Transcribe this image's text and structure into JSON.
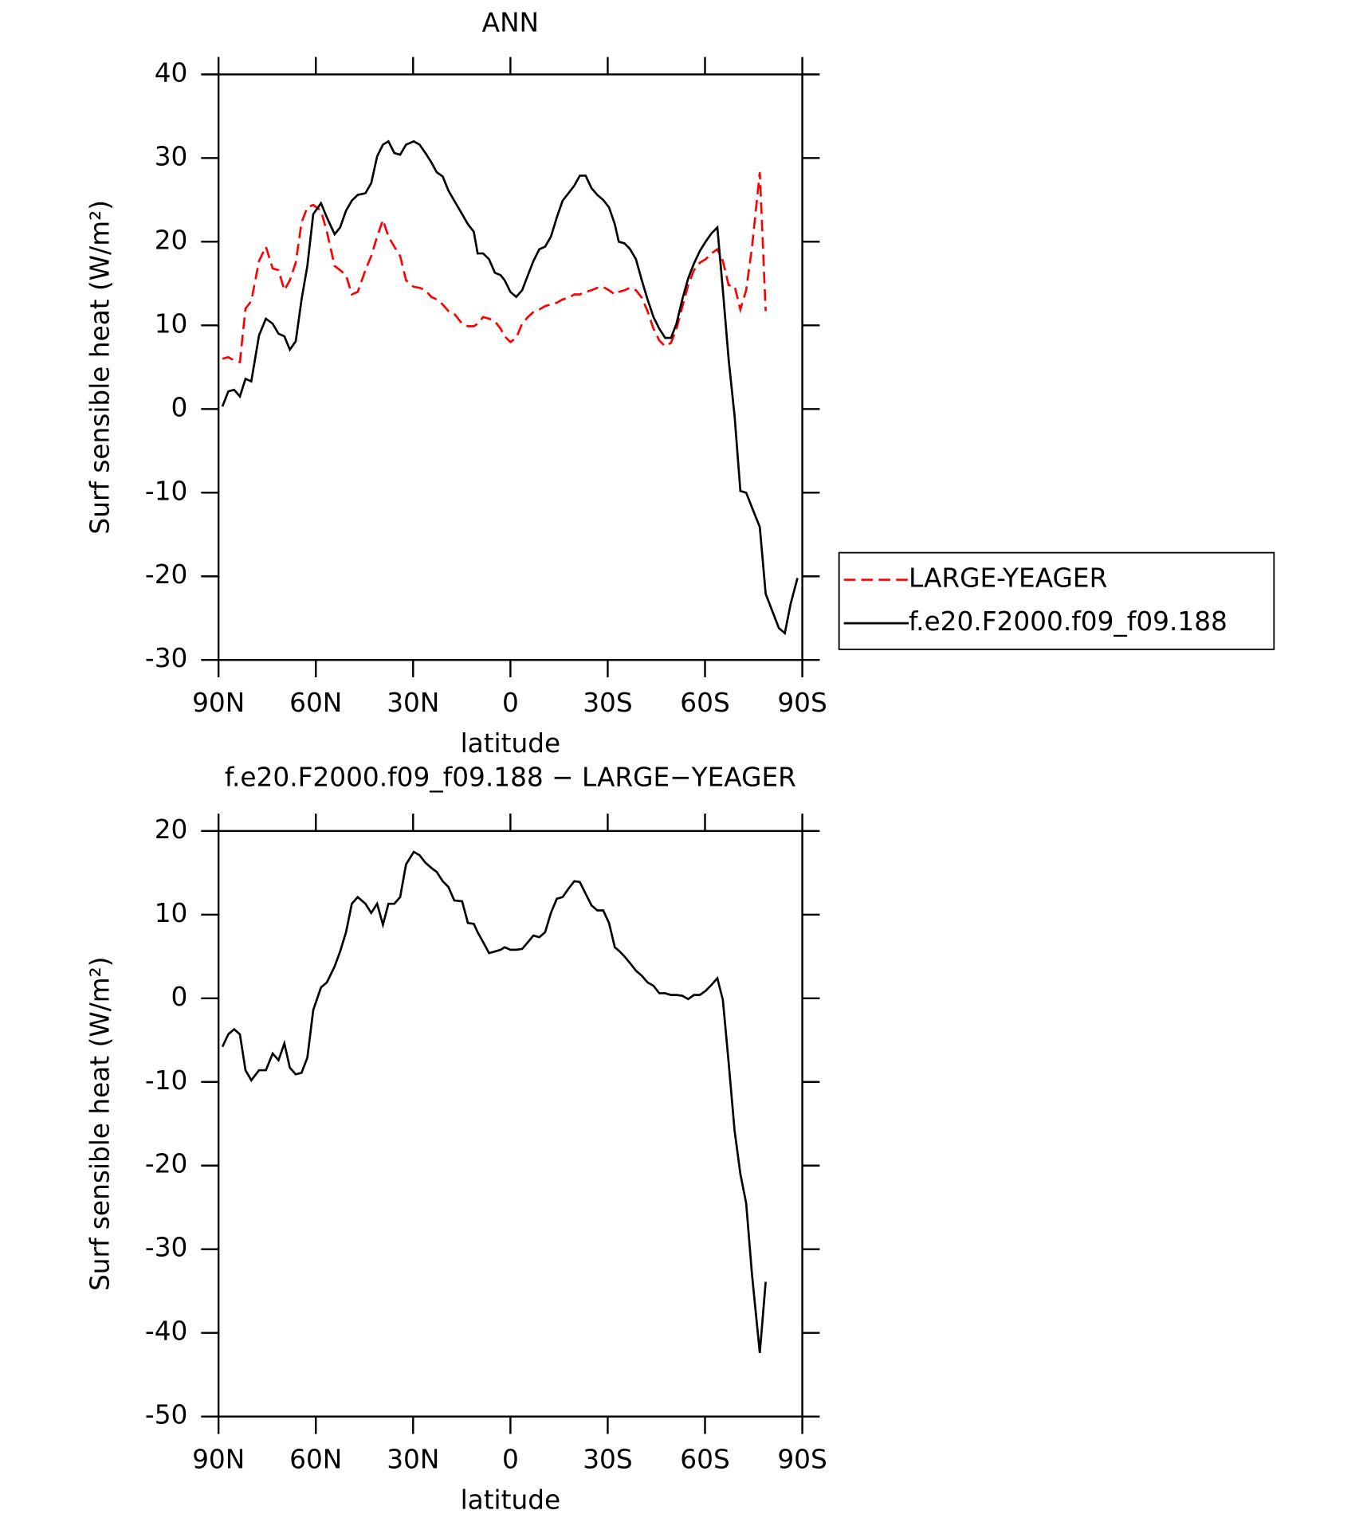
{
  "chart_data": [
    {
      "type": "line",
      "title": "ANN",
      "xlabel": "latitude",
      "ylabel": "Surf sensible heat (W/m²)",
      "xlim": [
        90,
        -90
      ],
      "xticks": [
        {
          "value": 90,
          "label": "90N"
        },
        {
          "value": 60,
          "label": "60N"
        },
        {
          "value": 30,
          "label": "30N"
        },
        0,
        {
          "value": -30,
          "label": "30S"
        },
        {
          "value": -60,
          "label": "60S"
        },
        {
          "value": -90,
          "label": "90S"
        }
      ],
      "ylim": [
        -30,
        40
      ],
      "yticks": [
        -30,
        -20,
        -10,
        0,
        10,
        20,
        30,
        40
      ],
      "legend": "right",
      "x": [
        88.8,
        87.0,
        85.2,
        83.4,
        81.7,
        79.9,
        77.5,
        75.4,
        73.3,
        71.5,
        69.7,
        68.0,
        66.2,
        64.4,
        62.6,
        60.8,
        58.4,
        56.6,
        54.2,
        52.5,
        50.7,
        48.9,
        47.1,
        44.7,
        42.9,
        41.1,
        39.3,
        37.6,
        35.8,
        34.0,
        32.2,
        29.8,
        28.0,
        26.2,
        24.4,
        22.7,
        20.9,
        19.1,
        17.3,
        14.9,
        13.1,
        11.3,
        10.1,
        8.4,
        6.6,
        4.8,
        3.0,
        1.8,
        0.0,
        -1.8,
        -3.6,
        -5.4,
        -7.1,
        -8.9,
        -10.7,
        -12.5,
        -14.3,
        -16.1,
        -17.9,
        -19.7,
        -21.4,
        -23.2,
        -25.0,
        -26.8,
        -28.6,
        -30.4,
        -32.2,
        -33.4,
        -35.2,
        -36.9,
        -38.7,
        -40.5,
        -42.3,
        -44.1,
        -45.9,
        -47.7,
        -49.5,
        -51.2,
        -53.0,
        -54.8,
        -56.6,
        -58.4,
        -60.2,
        -62.0,
        -63.8,
        -65.5,
        -67.3,
        -69.1,
        -70.9,
        -72.7,
        -74.5,
        -76.9,
        -78.7,
        -81.1,
        -82.8,
        -84.6,
        -86.4,
        -88.5
      ],
      "series": [
        {
          "name": "LARGE-YEAGER",
          "color": "#ff0000",
          "linestyle": "dashed",
          "values": [
            6.0,
            6.2,
            5.8,
            5.6,
            12.0,
            12.9,
            17.7,
            19.4,
            16.8,
            16.6,
            14.2,
            15.4,
            17.5,
            22.3,
            24.1,
            24.4,
            23.7,
            21.2,
            17.1,
            16.6,
            16.0,
            13.7,
            14.0,
            16.6,
            18.3,
            20.6,
            22.6,
            20.6,
            19.4,
            18.3,
            15.4,
            14.6,
            14.5,
            14.2,
            13.4,
            13.1,
            12.5,
            11.7,
            11.4,
            10.2,
            9.9,
            9.9,
            10.2,
            11.0,
            10.8,
            10.5,
            9.6,
            8.7,
            8.0,
            8.5,
            10.2,
            11.0,
            11.6,
            11.9,
            12.3,
            12.5,
            12.7,
            13.1,
            13.3,
            13.7,
            13.7,
            14.0,
            14.2,
            14.5,
            14.6,
            14.2,
            13.7,
            14.0,
            14.2,
            14.5,
            14.2,
            13.3,
            11.7,
            9.6,
            8.2,
            7.5,
            7.9,
            9.6,
            12.2,
            14.8,
            16.6,
            17.5,
            17.9,
            18.6,
            19.1,
            17.7,
            14.8,
            14.7,
            11.9,
            14.2,
            19.4,
            28.3,
            11.7,
            null,
            null,
            null,
            null,
            null
          ]
        },
        {
          "name": "f.e20.F2000.f09_f09.188",
          "color": "#000000",
          "linestyle": "solid",
          "values": [
            0.3,
            2.1,
            2.3,
            1.5,
            3.6,
            3.3,
            8.8,
            10.8,
            10.2,
            9.0,
            8.7,
            7.1,
            8.1,
            13.1,
            17.1,
            23.3,
            24.6,
            22.9,
            20.9,
            21.7,
            23.7,
            24.9,
            25.6,
            25.8,
            27.0,
            30.2,
            31.6,
            32.0,
            30.6,
            30.4,
            31.6,
            32.0,
            31.6,
            30.6,
            29.5,
            28.3,
            27.8,
            26.1,
            24.9,
            23.3,
            22.1,
            21.2,
            18.6,
            18.6,
            17.9,
            16.3,
            16.0,
            15.4,
            14.0,
            13.4,
            14.2,
            16.0,
            17.7,
            19.1,
            19.4,
            20.6,
            22.9,
            24.9,
            25.8,
            26.7,
            27.9,
            27.9,
            26.4,
            25.6,
            25.0,
            24.1,
            22.1,
            20.0,
            19.8,
            19.1,
            17.9,
            15.4,
            13.1,
            11.0,
            9.6,
            8.5,
            8.5,
            10.2,
            13.1,
            15.6,
            17.4,
            18.9,
            20.0,
            21.0,
            21.7,
            14.2,
            5.9,
            -0.8,
            -9.8,
            -10.0,
            -11.8,
            -14.1,
            -22.1,
            -24.5,
            -26.2,
            -26.8,
            -23.3,
            -20.2
          ]
        }
      ]
    },
    {
      "type": "line",
      "title": "f.e20.F2000.f09_f09.188 − LARGE−YEAGER",
      "xlabel": "latitude",
      "ylabel": "Surf sensible heat (W/m²)",
      "xlim": [
        90,
        -90
      ],
      "xticks": [
        {
          "value": 90,
          "label": "90N"
        },
        {
          "value": 60,
          "label": "60N"
        },
        {
          "value": 30,
          "label": "30N"
        },
        0,
        {
          "value": -30,
          "label": "30S"
        },
        {
          "value": -60,
          "label": "60S"
        },
        {
          "value": -90,
          "label": "90S"
        }
      ],
      "ylim": [
        -50,
        20
      ],
      "yticks": [
        -50,
        -40,
        -30,
        -20,
        -10,
        0,
        10,
        20
      ],
      "x": [
        88.8,
        87.0,
        85.2,
        83.4,
        81.7,
        79.9,
        77.5,
        75.4,
        73.3,
        71.5,
        69.7,
        68.0,
        66.2,
        64.4,
        62.6,
        60.8,
        58.4,
        56.6,
        54.2,
        52.5,
        50.7,
        48.9,
        47.1,
        44.7,
        42.9,
        41.1,
        39.3,
        37.6,
        35.8,
        34.0,
        32.2,
        29.8,
        28.0,
        26.2,
        24.4,
        22.7,
        20.9,
        19.1,
        17.3,
        14.9,
        13.1,
        11.3,
        10.1,
        8.4,
        6.6,
        4.8,
        3.0,
        1.8,
        0.0,
        -1.8,
        -3.6,
        -5.4,
        -7.1,
        -8.9,
        -10.7,
        -12.5,
        -14.3,
        -16.1,
        -17.9,
        -19.7,
        -21.4,
        -23.2,
        -25.0,
        -26.8,
        -28.6,
        -30.4,
        -32.2,
        -33.4,
        -35.2,
        -36.9,
        -38.7,
        -40.5,
        -42.3,
        -44.1,
        -45.9,
        -47.7,
        -49.5,
        -51.2,
        -53.0,
        -54.8,
        -56.6,
        -58.4,
        -60.2,
        -62.0,
        -63.8,
        -65.5,
        -67.3,
        -69.1,
        -70.9,
        -72.7,
        -74.5,
        -76.9,
        -78.7,
        -81.1,
        -82.8,
        -84.6,
        -86.4,
        -88.5
      ],
      "series": [
        {
          "color": "#000000",
          "linestyle": "solid",
          "values": [
            -5.8,
            -4.3,
            -3.7,
            -4.3,
            -8.6,
            -9.8,
            -8.6,
            -8.6,
            -6.6,
            -7.4,
            -5.4,
            -8.3,
            -9.1,
            -8.9,
            -7.1,
            -1.4,
            1.3,
            1.9,
            3.8,
            5.6,
            7.9,
            11.3,
            12.1,
            11.3,
            10.2,
            11.3,
            8.8,
            11.3,
            11.3,
            12.1,
            16.0,
            17.5,
            17.1,
            16.2,
            15.6,
            15.1,
            14.0,
            13.3,
            11.7,
            11.6,
            9.0,
            8.9,
            7.9,
            6.7,
            5.4,
            5.6,
            5.8,
            6.1,
            5.8,
            5.8,
            5.9,
            6.7,
            7.5,
            7.3,
            7.9,
            10.2,
            11.9,
            12.1,
            13.1,
            14.0,
            13.9,
            12.5,
            11.1,
            10.5,
            10.5,
            9.0,
            6.1,
            5.7,
            5.0,
            4.2,
            3.3,
            2.7,
            1.9,
            1.5,
            0.6,
            0.6,
            0.4,
            0.4,
            0.3,
            -0.1,
            0.4,
            0.4,
            0.9,
            1.6,
            2.4,
            -0.2,
            -7.7,
            -15.8,
            -21.0,
            -24.5,
            -33.1,
            -42.4,
            -33.9,
            null,
            null,
            null,
            null,
            null
          ]
        }
      ]
    }
  ]
}
